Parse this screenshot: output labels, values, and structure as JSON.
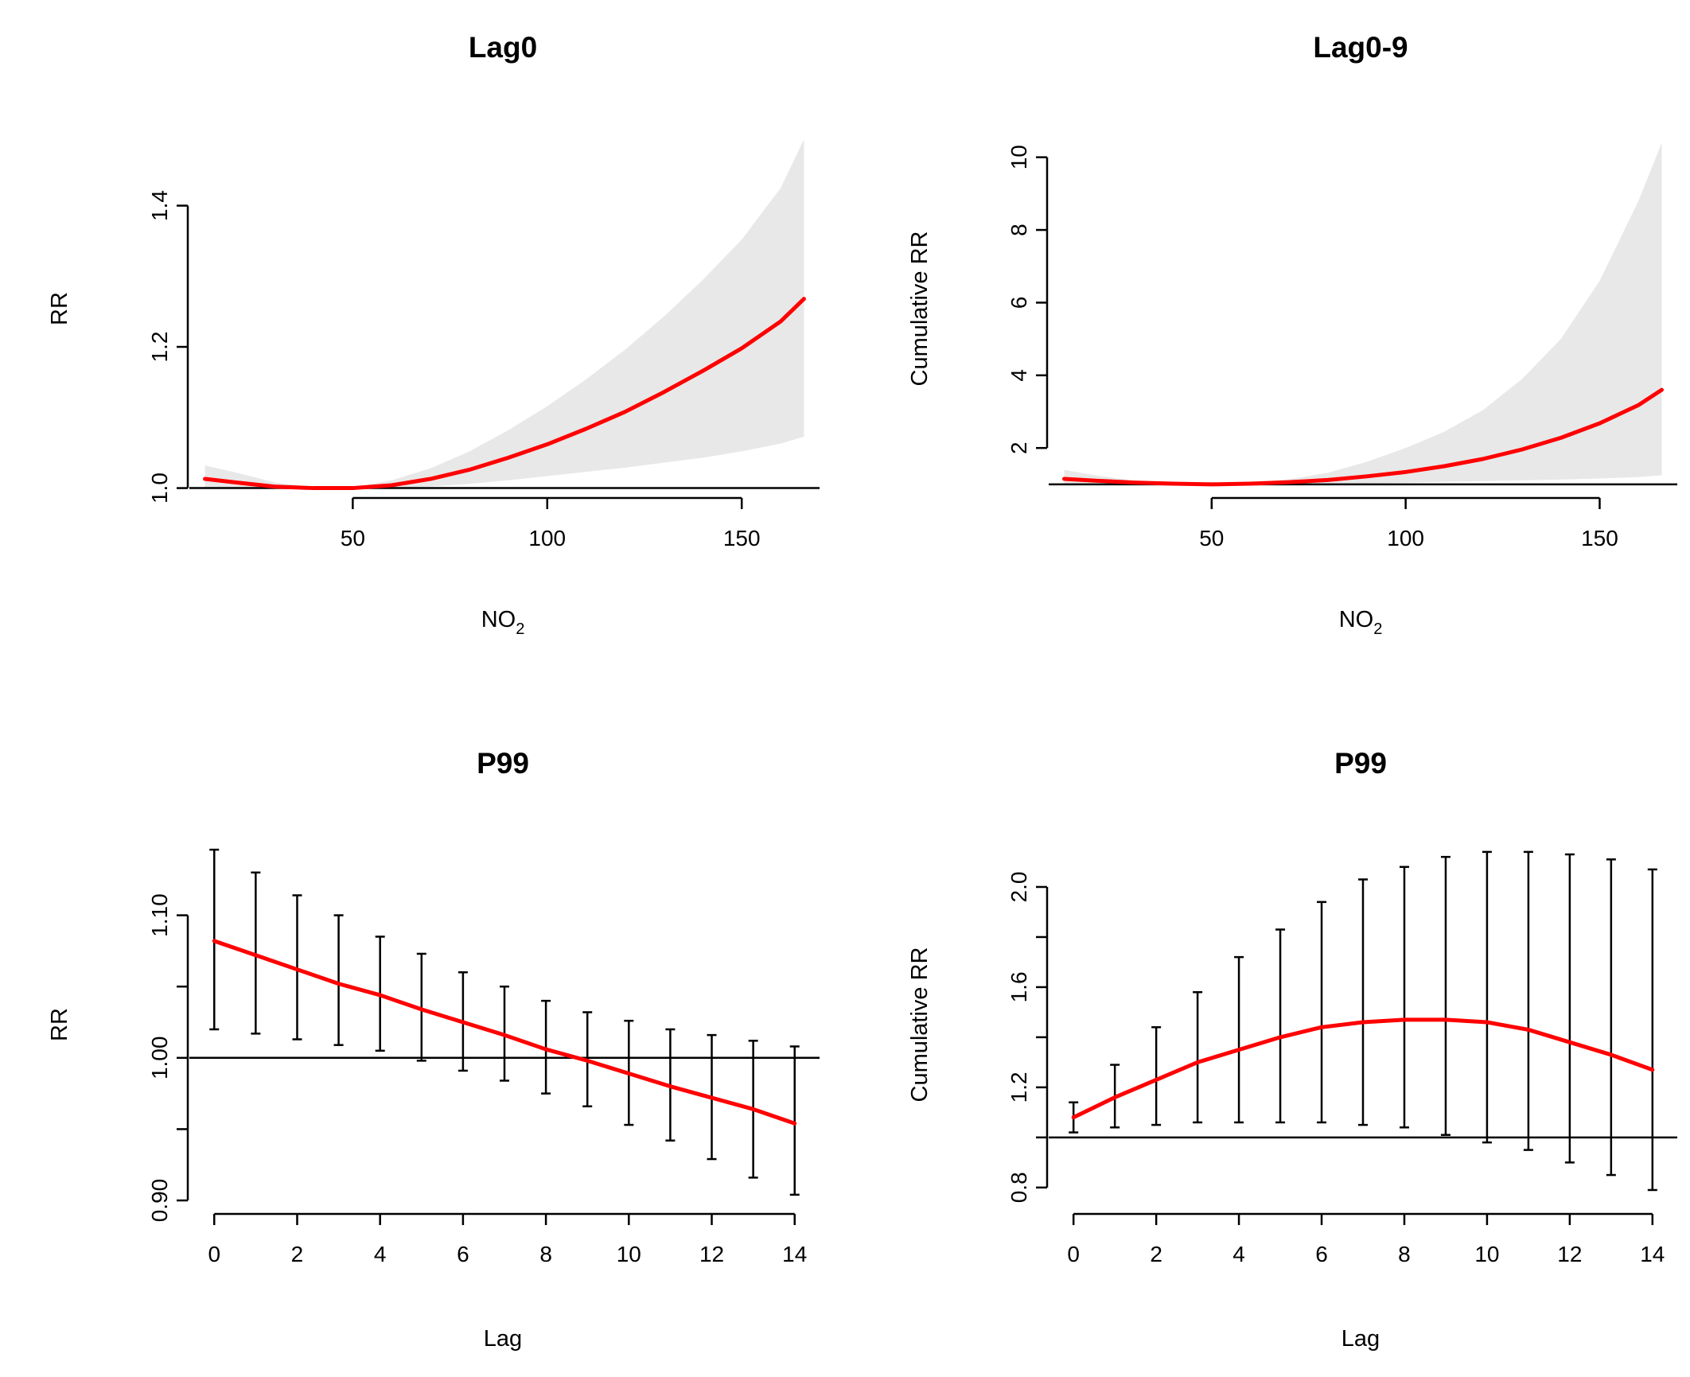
{
  "chart_data": [
    {
      "type": "line",
      "title": "Lag0",
      "xlabel": "NO",
      "xlabel_sub": "2",
      "ylabel": "RR",
      "xlim": [
        8,
        170
      ],
      "ylim": [
        0.995,
        1.52
      ],
      "xticks": [
        50,
        100,
        150
      ],
      "yticks": [
        1.0,
        1.2,
        1.4
      ],
      "ytick_labels": [
        "1.0",
        "1.2",
        "1.4"
      ],
      "reference_line": 1.0,
      "band": "ci",
      "series": [
        {
          "name": "RR",
          "x": [
            12,
            20,
            30,
            40,
            50,
            60,
            70,
            80,
            90,
            100,
            110,
            120,
            130,
            140,
            150,
            160,
            166
          ],
          "y": [
            1.013,
            1.008,
            1.002,
            1.0,
            1.0,
            1.004,
            1.013,
            1.026,
            1.043,
            1.062,
            1.084,
            1.108,
            1.136,
            1.166,
            1.198,
            1.236,
            1.268
          ],
          "lower": [
            1.0,
            1.0,
            1.0,
            1.0,
            1.0,
            1.0,
            1.002,
            1.006,
            1.011,
            1.017,
            1.023,
            1.029,
            1.036,
            1.043,
            1.052,
            1.063,
            1.073
          ],
          "upper": [
            1.032,
            1.022,
            1.008,
            1.001,
            1.001,
            1.011,
            1.028,
            1.052,
            1.082,
            1.116,
            1.154,
            1.196,
            1.243,
            1.295,
            1.352,
            1.425,
            1.494
          ]
        }
      ]
    },
    {
      "type": "line",
      "title": "Lag0-9",
      "xlabel": "NO",
      "xlabel_sub": "2",
      "ylabel": "Cumulative RR",
      "xlim": [
        8,
        170
      ],
      "ylim": [
        0.8,
        11.0
      ],
      "xticks": [
        50,
        100,
        150
      ],
      "yticks": [
        2,
        4,
        6,
        8,
        10
      ],
      "ytick_labels": [
        "2",
        "4",
        "6",
        "8",
        "10"
      ],
      "reference_line": 1.0,
      "band": "ci",
      "series": [
        {
          "name": "Cumulative RR",
          "x": [
            12,
            20,
            30,
            40,
            50,
            60,
            70,
            80,
            90,
            100,
            110,
            120,
            130,
            140,
            150,
            160,
            166
          ],
          "y": [
            1.15,
            1.1,
            1.05,
            1.02,
            1.0,
            1.02,
            1.06,
            1.12,
            1.22,
            1.34,
            1.5,
            1.7,
            1.96,
            2.28,
            2.68,
            3.18,
            3.6
          ],
          "lower": [
            1.02,
            1.0,
            1.0,
            1.0,
            1.0,
            1.0,
            1.0,
            1.01,
            1.03,
            1.05,
            1.07,
            1.09,
            1.11,
            1.13,
            1.16,
            1.2,
            1.25
          ],
          "upper": [
            1.4,
            1.25,
            1.1,
            1.04,
            1.01,
            1.05,
            1.14,
            1.32,
            1.62,
            2.0,
            2.45,
            3.05,
            3.9,
            5.0,
            6.6,
            8.8,
            10.4
          ]
        }
      ]
    },
    {
      "type": "line",
      "title": "P99",
      "xlabel": "Lag",
      "ylabel": "RR",
      "xlim": [
        -0.6,
        14.6
      ],
      "ylim": [
        0.895,
        1.155
      ],
      "xticks": [
        0,
        2,
        4,
        6,
        8,
        10,
        12,
        14
      ],
      "yticks": [
        0.9,
        0.95,
        1.0,
        1.05,
        1.1
      ],
      "ytick_labels": [
        "0.90",
        "",
        "1.00",
        "",
        "1.10"
      ],
      "reference_line": 1.0,
      "band": "errorbars",
      "series": [
        {
          "name": "RR",
          "x": [
            0,
            1,
            2,
            3,
            4,
            5,
            6,
            7,
            8,
            9,
            10,
            11,
            12,
            13,
            14
          ],
          "y": [
            1.082,
            1.072,
            1.062,
            1.052,
            1.044,
            1.034,
            1.025,
            1.016,
            1.006,
            0.998,
            0.989,
            0.98,
            0.972,
            0.964,
            0.954
          ],
          "lower": [
            1.02,
            1.017,
            1.013,
            1.009,
            1.005,
            0.998,
            0.991,
            0.984,
            0.975,
            0.966,
            0.953,
            0.942,
            0.929,
            0.916,
            0.904
          ],
          "upper": [
            1.146,
            1.13,
            1.114,
            1.1,
            1.085,
            1.073,
            1.06,
            1.05,
            1.04,
            1.032,
            1.026,
            1.02,
            1.016,
            1.012,
            1.008
          ]
        }
      ]
    },
    {
      "type": "line",
      "title": "P99",
      "xlabel": "Lag",
      "ylabel": "Cumulative RR",
      "xlim": [
        -0.6,
        14.6
      ],
      "ylim": [
        0.72,
        2.2
      ],
      "xticks": [
        0,
        2,
        4,
        6,
        8,
        10,
        12,
        14
      ],
      "yticks": [
        0.8,
        1.0,
        1.2,
        1.4,
        1.6,
        1.8,
        2.0
      ],
      "ytick_labels": [
        "0.8",
        "",
        "1.2",
        "",
        "1.6",
        "",
        "2.0"
      ],
      "reference_line": 1.0,
      "band": "errorbars",
      "series": [
        {
          "name": "Cumulative RR",
          "x": [
            0,
            1,
            2,
            3,
            4,
            5,
            6,
            7,
            8,
            9,
            10,
            11,
            12,
            13,
            14
          ],
          "y": [
            1.08,
            1.16,
            1.23,
            1.3,
            1.35,
            1.4,
            1.44,
            1.46,
            1.47,
            1.47,
            1.46,
            1.43,
            1.38,
            1.33,
            1.27
          ],
          "lower": [
            1.02,
            1.04,
            1.05,
            1.06,
            1.06,
            1.06,
            1.06,
            1.05,
            1.04,
            1.01,
            0.98,
            0.95,
            0.9,
            0.85,
            0.79
          ],
          "upper": [
            1.14,
            1.29,
            1.44,
            1.58,
            1.72,
            1.83,
            1.94,
            2.03,
            2.08,
            2.12,
            2.14,
            2.14,
            2.13,
            2.11,
            2.07
          ]
        }
      ]
    }
  ]
}
